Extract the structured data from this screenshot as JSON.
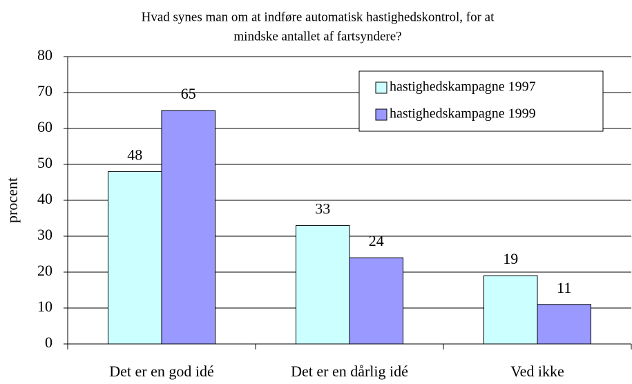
{
  "chart_data": {
    "type": "bar",
    "title": [
      "Hvad synes man om at indføre automatisk hastighedskontrol, for at",
      "mindske antallet af fartsyndere?"
    ],
    "y_label": "procent",
    "categories": [
      "Det er en god idé",
      "Det er en dårlig idé",
      "Ved ikke"
    ],
    "series": [
      {
        "name": "hastighedskampagne 1997",
        "color": "#ccffff",
        "values": [
          48,
          33,
          19
        ]
      },
      {
        "name": "hastighedskampagne 1999",
        "color": "#9999ff",
        "values": [
          65,
          24,
          11
        ]
      }
    ],
    "ylim": [
      0,
      80
    ],
    "yticks": [
      0,
      10,
      20,
      30,
      40,
      50,
      60,
      70,
      80
    ],
    "grid": true,
    "legend": "top-right"
  }
}
